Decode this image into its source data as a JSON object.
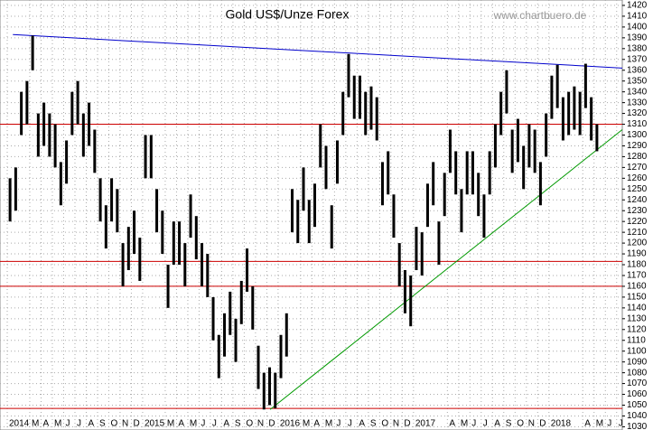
{
  "chart_data": {
    "type": "range-bar",
    "title": "Gold US$/Unze Forex",
    "source": "www.chartbuero.de",
    "color": "#000000",
    "x": [
      0.25,
      0.75,
      1.25,
      1.75,
      2.25,
      2.75,
      3.25,
      3.75,
      4.25,
      4.75,
      5.25,
      5.75,
      6.25,
      6.75,
      7.25,
      7.75,
      8.25,
      8.75,
      9.25,
      9.75,
      10.25,
      10.75,
      11.25,
      11.75,
      12.25,
      12.75,
      13.25,
      13.75,
      14.25,
      14.75,
      15.25,
      15.75,
      16.25,
      16.75,
      17.25,
      17.75,
      18.25,
      18.75,
      19.25,
      19.75,
      20.25,
      20.75,
      21.25,
      21.75,
      22.25,
      22.75,
      23.25,
      23.75,
      24.25,
      24.75,
      25.25,
      25.75,
      26.25,
      26.75,
      27.25,
      27.75,
      28.25,
      28.75,
      29.25,
      29.75,
      30.25,
      30.75,
      31.25,
      31.75,
      32.25,
      32.75,
      33.25,
      33.75,
      34.25,
      34.75,
      35.25,
      35.75,
      36.25,
      36.75,
      37.25,
      37.75,
      38.25,
      38.75,
      39.25,
      39.75,
      40.25,
      40.75,
      41.25,
      41.75,
      42.25,
      42.75,
      43.25,
      43.75,
      44.25,
      44.75,
      45.25,
      45.75,
      46.25,
      46.75,
      47.25,
      47.75,
      48.25,
      48.75,
      49.25,
      49.75,
      50.25,
      50.75,
      51.25,
      51.75,
      52.25
    ],
    "high": [
      1260,
      1270,
      1340,
      1350,
      1392,
      1320,
      1330,
      1320,
      1310,
      1275,
      1295,
      1340,
      1350,
      1320,
      1330,
      1305,
      1260,
      1235,
      1260,
      1250,
      1200,
      1215,
      1230,
      1205,
      1300,
      1300,
      1250,
      1230,
      1180,
      1220,
      1220,
      1200,
      1245,
      1225,
      1200,
      1190,
      1150,
      1115,
      1135,
      1155,
      1130,
      1165,
      1195,
      1160,
      1105,
      1080,
      1085,
      1080,
      1115,
      1135,
      1250,
      1240,
      1270,
      1240,
      1255,
      1310,
      1290,
      1235,
      1295,
      1340,
      1375,
      1355,
      1355,
      1340,
      1345,
      1335,
      1275,
      1285,
      1245,
      1200,
      1175,
      1170,
      1215,
      1210,
      1255,
      1275,
      1220,
      1265,
      1305,
      1285,
      1250,
      1285,
      1285,
      1265,
      1245,
      1285,
      1310,
      1340,
      1360,
      1305,
      1315,
      1290,
      1310,
      1305,
      1275,
      1320,
      1355,
      1365,
      1335,
      1340,
      1345,
      1340,
      1366,
      1335,
      1310
    ],
    "low": [
      1220,
      1230,
      1300,
      1310,
      1360,
      1280,
      1290,
      1280,
      1270,
      1235,
      1255,
      1300,
      1310,
      1280,
      1290,
      1265,
      1220,
      1195,
      1220,
      1210,
      1160,
      1175,
      1190,
      1165,
      1260,
      1260,
      1210,
      1190,
      1140,
      1180,
      1180,
      1160,
      1205,
      1185,
      1160,
      1150,
      1110,
      1075,
      1095,
      1115,
      1090,
      1125,
      1155,
      1120,
      1065,
      1046,
      1050,
      1047,
      1075,
      1095,
      1210,
      1200,
      1230,
      1200,
      1215,
      1270,
      1250,
      1195,
      1255,
      1300,
      1335,
      1315,
      1315,
      1300,
      1305,
      1295,
      1235,
      1245,
      1205,
      1160,
      1135,
      1123,
      1175,
      1170,
      1215,
      1235,
      1180,
      1225,
      1265,
      1245,
      1210,
      1245,
      1245,
      1225,
      1205,
      1245,
      1270,
      1300,
      1320,
      1265,
      1275,
      1250,
      1270,
      1265,
      1235,
      1280,
      1315,
      1325,
      1295,
      1300,
      1305,
      1300,
      1325,
      1295,
      1285
    ],
    "hlines": [
      {
        "value": 1310,
        "color": "#cc0000"
      },
      {
        "value": 1183,
        "color": "#cc0000"
      },
      {
        "value": 1160,
        "color": "#cc0000"
      },
      {
        "value": 1047,
        "color": "#cc0000"
      }
    ],
    "trendlines": [
      {
        "x": [
          0.5,
          54.5
        ],
        "y": [
          1393,
          1362
        ],
        "color": "#0000cc"
      },
      {
        "x": [
          23.3,
          54.5
        ],
        "y": [
          1046,
          1305
        ],
        "color": "#009900"
      }
    ],
    "xlim": [
      0,
      54.5
    ],
    "ylim": [
      1027,
      1425
    ],
    "xticks": [
      {
        "value": 0,
        "label": "2014"
      },
      {
        "value": 2,
        "label": "M"
      },
      {
        "value": 3,
        "label": "A"
      },
      {
        "value": 4,
        "label": "M"
      },
      {
        "value": 5,
        "label": "J"
      },
      {
        "value": 6,
        "label": "J"
      },
      {
        "value": 7,
        "label": "A"
      },
      {
        "value": 8,
        "label": "S"
      },
      {
        "value": 9,
        "label": "O"
      },
      {
        "value": 10,
        "label": "N"
      },
      {
        "value": 11,
        "label": "D"
      },
      {
        "value": 12,
        "label": "2015"
      },
      {
        "value": 14,
        "label": "M"
      },
      {
        "value": 15,
        "label": "A"
      },
      {
        "value": 16,
        "label": "M"
      },
      {
        "value": 17,
        "label": "J"
      },
      {
        "value": 18,
        "label": "J"
      },
      {
        "value": 19,
        "label": "A"
      },
      {
        "value": 20,
        "label": "S"
      },
      {
        "value": 21,
        "label": "O"
      },
      {
        "value": 22,
        "label": "N"
      },
      {
        "value": 23,
        "label": "D"
      },
      {
        "value": 24,
        "label": "2016"
      },
      {
        "value": 26,
        "label": "M"
      },
      {
        "value": 27,
        "label": "A"
      },
      {
        "value": 28,
        "label": "M"
      },
      {
        "value": 29,
        "label": "J"
      },
      {
        "value": 30,
        "label": "J"
      },
      {
        "value": 31,
        "label": "A"
      },
      {
        "value": 32,
        "label": "S"
      },
      {
        "value": 33,
        "label": "O"
      },
      {
        "value": 34,
        "label": "N"
      },
      {
        "value": 35,
        "label": "D"
      },
      {
        "value": 36,
        "label": "2017"
      },
      {
        "value": 39,
        "label": "A"
      },
      {
        "value": 40,
        "label": "M"
      },
      {
        "value": 41,
        "label": "J"
      },
      {
        "value": 42,
        "label": "J"
      },
      {
        "value": 43,
        "label": "A"
      },
      {
        "value": 44,
        "label": "S"
      },
      {
        "value": 45,
        "label": "O"
      },
      {
        "value": 46,
        "label": "N"
      },
      {
        "value": 47,
        "label": "D"
      },
      {
        "value": 48,
        "label": "2018"
      },
      {
        "value": 51,
        "label": "A"
      },
      {
        "value": 52,
        "label": "M"
      },
      {
        "value": 53,
        "label": "J"
      },
      {
        "value": 54,
        "label": "J"
      }
    ],
    "yticks": [
      1030,
      1040,
      1050,
      1060,
      1070,
      1080,
      1090,
      1100,
      1110,
      1120,
      1130,
      1140,
      1150,
      1160,
      1170,
      1180,
      1190,
      1200,
      1210,
      1220,
      1230,
      1240,
      1250,
      1260,
      1270,
      1280,
      1290,
      1300,
      1310,
      1320,
      1330,
      1340,
      1350,
      1360,
      1370,
      1380,
      1390,
      1400,
      1410,
      1420
    ],
    "grid": true
  }
}
